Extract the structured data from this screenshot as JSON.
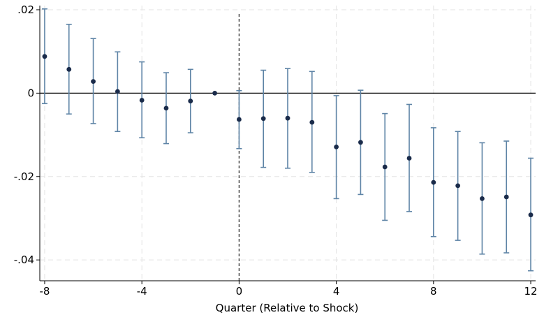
{
  "chart_data": {
    "type": "scatter",
    "title": "",
    "xlabel": "Quarter (Relative to Shock)",
    "ylabel": "",
    "xlim": [
      -8.2,
      12.2
    ],
    "ylim": [
      -0.045,
      0.021
    ],
    "x_ticks": [
      -8,
      -4,
      0,
      4,
      8,
      12
    ],
    "x_tick_labels": [
      "-8",
      "-4",
      "0",
      "4",
      "8",
      "12"
    ],
    "y_ticks": [
      0.02,
      0,
      -0.02,
      -0.04
    ],
    "y_tick_labels": [
      ".02",
      "0",
      "-.02",
      "-.04"
    ],
    "grid": true,
    "reference_lines": {
      "horizontal_at": 0,
      "vertical_at": 0
    },
    "colors": {
      "point": "#1a2b4a",
      "error_bar": "#5e84a6",
      "grid": "#e3e3e3",
      "zero_line": "#000000"
    },
    "points": [
      {
        "x": -8,
        "y": 0.0088,
        "lo": -0.0025,
        "hi": 0.0202
      },
      {
        "x": -7,
        "y": 0.0057,
        "lo": -0.005,
        "hi": 0.0165
      },
      {
        "x": -6,
        "y": 0.0028,
        "lo": -0.0073,
        "hi": 0.0131
      },
      {
        "x": -5,
        "y": 0.0004,
        "lo": -0.0092,
        "hi": 0.0099
      },
      {
        "x": -4,
        "y": -0.0017,
        "lo": -0.0107,
        "hi": 0.0075
      },
      {
        "x": -3,
        "y": -0.0036,
        "lo": -0.0121,
        "hi": 0.0049
      },
      {
        "x": -2,
        "y": -0.0019,
        "lo": -0.0095,
        "hi": 0.0057
      },
      {
        "x": -1,
        "y": 0.0,
        "lo": 0.0,
        "hi": 0.0
      },
      {
        "x": 0,
        "y": -0.0063,
        "lo": -0.0133,
        "hi": 0.0006
      },
      {
        "x": 1,
        "y": -0.0061,
        "lo": -0.0178,
        "hi": 0.0055
      },
      {
        "x": 2,
        "y": -0.006,
        "lo": -0.018,
        "hi": 0.0059
      },
      {
        "x": 3,
        "y": -0.007,
        "lo": -0.019,
        "hi": 0.0052
      },
      {
        "x": 4,
        "y": -0.0129,
        "lo": -0.0253,
        "hi": -0.0006
      },
      {
        "x": 5,
        "y": -0.0118,
        "lo": -0.0243,
        "hi": 0.0007
      },
      {
        "x": 6,
        "y": -0.0177,
        "lo": -0.0305,
        "hi": -0.0049
      },
      {
        "x": 7,
        "y": -0.0156,
        "lo": -0.0284,
        "hi": -0.0027
      },
      {
        "x": 8,
        "y": -0.0214,
        "lo": -0.0344,
        "hi": -0.0083
      },
      {
        "x": 9,
        "y": -0.0222,
        "lo": -0.0353,
        "hi": -0.0092
      },
      {
        "x": 10,
        "y": -0.0253,
        "lo": -0.0386,
        "hi": -0.0119
      },
      {
        "x": 11,
        "y": -0.0249,
        "lo": -0.0383,
        "hi": -0.0115
      },
      {
        "x": 12,
        "y": -0.0292,
        "lo": -0.0426,
        "hi": -0.0156
      }
    ]
  }
}
